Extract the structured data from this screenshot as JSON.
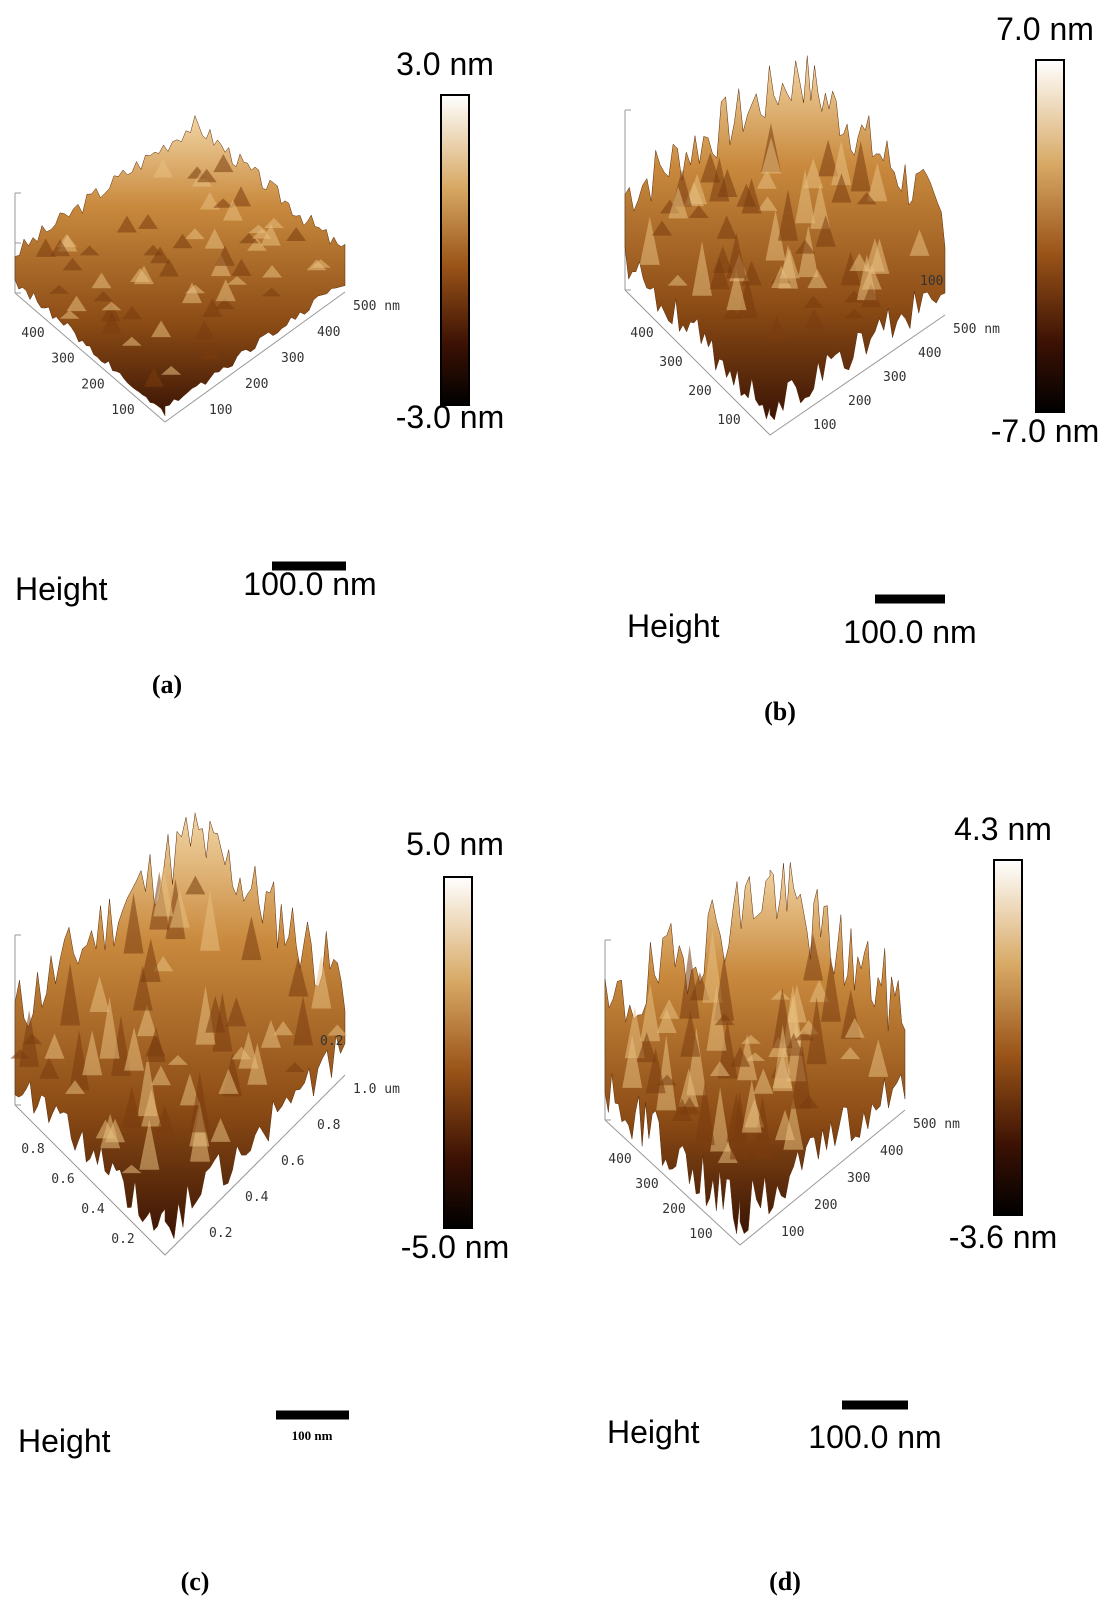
{
  "panels": [
    {
      "label": "(a)",
      "colorbar_max": "3.0 nm",
      "colorbar_min": "-3.0 nm",
      "height_label": "Height",
      "scale_bar": "100.0 nm",
      "left_ticks": [
        "400",
        "300",
        "200",
        "100"
      ],
      "right_ticks": [
        "100",
        "200",
        "300",
        "400",
        "500 nm"
      ]
    },
    {
      "label": "(b)",
      "colorbar_max": "7.0 nm",
      "colorbar_min": "-7.0 nm",
      "height_label": "Height",
      "scale_bar": "100.0 nm",
      "left_ticks": [
        "400",
        "300",
        "200",
        "100"
      ],
      "right_ticks": [
        "100",
        "200",
        "300",
        "400",
        "500 nm"
      ],
      "back_ticks": [
        "100"
      ]
    },
    {
      "label": "(c)",
      "colorbar_max": "5.0 nm",
      "colorbar_min": "-5.0 nm",
      "height_label": "Height",
      "scale_bar": "100 nm",
      "left_ticks": [
        "0.8",
        "0.6",
        "0.4",
        "0.2"
      ],
      "right_ticks": [
        "0.2",
        "0.4",
        "0.6",
        "0.8",
        "1.0 um"
      ],
      "back_ticks": [
        "0.2"
      ]
    },
    {
      "label": "(d)",
      "colorbar_max": "4.3 nm",
      "colorbar_min": "-3.6 nm",
      "height_label": "Height",
      "scale_bar": "100.0 nm",
      "left_ticks": [
        "400",
        "300",
        "200",
        "100"
      ],
      "right_ticks": [
        "100",
        "200",
        "300",
        "400",
        "500 nm"
      ]
    }
  ]
}
